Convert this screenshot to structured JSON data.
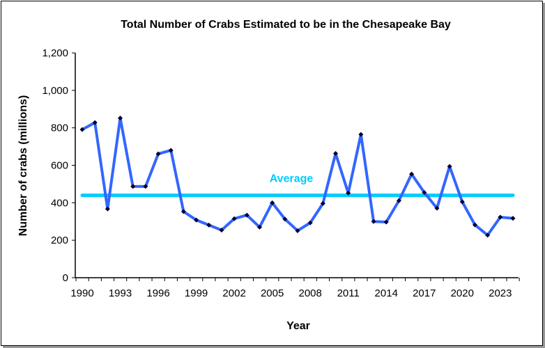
{
  "chart_data": {
    "type": "line",
    "title": "Total Number of Crabs Estimated to be in the Chesapeake Bay",
    "xlabel": "Year",
    "ylabel": "Number of crabs (millions)",
    "ylim": [
      0,
      1200
    ],
    "xlim": [
      1990,
      2024
    ],
    "grid": false,
    "yticks": [
      "0",
      "200",
      "400",
      "600",
      "800",
      "1,000",
      "1,200"
    ],
    "xticks": [
      "1990",
      "1993",
      "1996",
      "1999",
      "2002",
      "2005",
      "2008",
      "2011",
      "2014",
      "2017",
      "2020",
      "2023"
    ],
    "x": [
      1990,
      1991,
      1992,
      1993,
      1994,
      1995,
      1996,
      1997,
      1998,
      1999,
      2000,
      2001,
      2002,
      2003,
      2004,
      2005,
      2006,
      2007,
      2008,
      2009,
      2010,
      2011,
      2012,
      2013,
      2014,
      2015,
      2016,
      2017,
      2018,
      2019,
      2020,
      2021,
      2022,
      2023,
      2024
    ],
    "series": [
      {
        "values": [
          791,
          828,
          367,
          852,
          487,
          487,
          661,
          680,
          353,
          308,
          281,
          254,
          315,
          334,
          270,
          400,
          313,
          251,
          293,
          396,
          663,
          452,
          765,
          300,
          297,
          411,
          553,
          455,
          371,
          594,
          405,
          282,
          227,
          323,
          317
        ],
        "color": "#3366ff"
      }
    ],
    "average": {
      "label": "Average",
      "value": 440,
      "color": "#00ccff"
    }
  }
}
